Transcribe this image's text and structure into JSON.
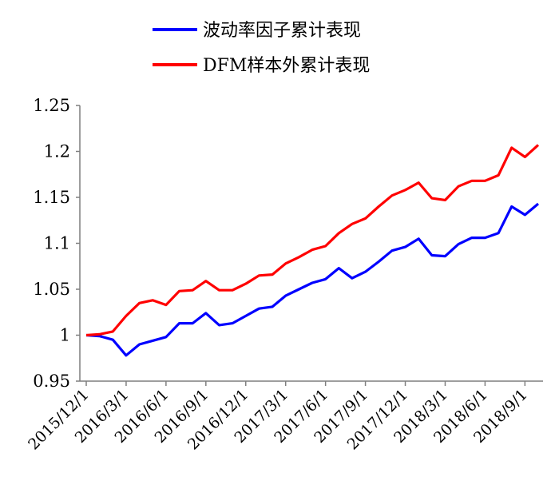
{
  "chart_data": {
    "type": "line",
    "title": "",
    "xlabel": "",
    "ylabel": "",
    "ylim": [
      0.95,
      1.25
    ],
    "yticks": [
      "0.95",
      "1",
      "1.05",
      "1.1",
      "1.15",
      "1.2",
      "1.25"
    ],
    "ytick_values": [
      0.95,
      1.0,
      1.05,
      1.1,
      1.15,
      1.2,
      1.25
    ],
    "xtick_labels": [
      "2015/12/1",
      "2016/3/1",
      "2016/6/1",
      "2016/9/1",
      "2016/12/1",
      "2017/3/1",
      "2017/6/1",
      "2017/9/1",
      "2017/12/1",
      "2018/3/1",
      "2018/6/1",
      "2018/9/1"
    ],
    "x": [
      "2015/12",
      "2016/1",
      "2016/2",
      "2016/3",
      "2016/4",
      "2016/5",
      "2016/6",
      "2016/7",
      "2016/8",
      "2016/9",
      "2016/10",
      "2016/11",
      "2016/12",
      "2017/1",
      "2017/2",
      "2017/3",
      "2017/4",
      "2017/5",
      "2017/6",
      "2017/7",
      "2017/8",
      "2017/9",
      "2017/10",
      "2017/11",
      "2017/12",
      "2018/1",
      "2018/2",
      "2018/3",
      "2018/4",
      "2018/5",
      "2018/6",
      "2018/7",
      "2018/8",
      "2018/9",
      "2018/10"
    ],
    "grid": false,
    "legend_position": "top-center",
    "series": [
      {
        "name": "波动率因子累计表现",
        "color": "#0000ff",
        "values": [
          1.0,
          0.999,
          0.995,
          0.978,
          0.99,
          0.994,
          0.998,
          1.013,
          1.013,
          1.024,
          1.011,
          1.013,
          1.021,
          1.029,
          1.031,
          1.043,
          1.05,
          1.057,
          1.061,
          1.073,
          1.062,
          1.069,
          1.08,
          1.092,
          1.096,
          1.105,
          1.087,
          1.086,
          1.099,
          1.106,
          1.106,
          1.111,
          1.14,
          1.131,
          1.143
        ]
      },
      {
        "name": "DFM样本外累计表现",
        "color": "#ff0000",
        "values": [
          1.0,
          1.001,
          1.004,
          1.021,
          1.035,
          1.038,
          1.033,
          1.048,
          1.049,
          1.059,
          1.049,
          1.049,
          1.056,
          1.065,
          1.066,
          1.078,
          1.085,
          1.093,
          1.097,
          1.111,
          1.121,
          1.127,
          1.14,
          1.152,
          1.158,
          1.166,
          1.149,
          1.147,
          1.162,
          1.168,
          1.168,
          1.174,
          1.204,
          1.194,
          1.207
        ]
      }
    ]
  }
}
